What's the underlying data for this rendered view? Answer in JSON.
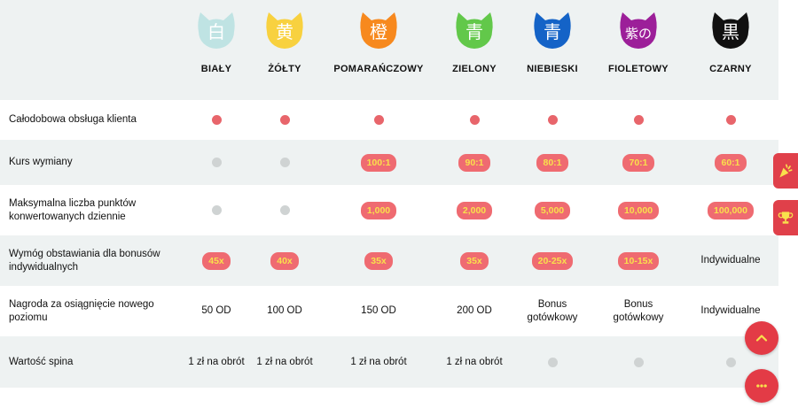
{
  "tiers": [
    {
      "name": "BIAŁY",
      "kanji": "白",
      "color": "#bfe3e3"
    },
    {
      "name": "ŻÓŁTY",
      "kanji": "黄",
      "color": "#f8d13f"
    },
    {
      "name": "POMARAŃCZOWY",
      "kanji": "橙",
      "color": "#f7891e"
    },
    {
      "name": "ZIELONY",
      "kanji": "青",
      "color": "#62c84a"
    },
    {
      "name": "NIEBIESKI",
      "kanji": "青",
      "color": "#1463c7"
    },
    {
      "name": "FIOLETOWY",
      "kanji": "紫の",
      "color": "#9c1f99"
    },
    {
      "name": "CZARNY",
      "kanji": "黒",
      "color": "#111111"
    }
  ],
  "rows": [
    {
      "label": "Całodobowa obsługa klienta",
      "cells": [
        {
          "t": "dot",
          "c": "red"
        },
        {
          "t": "dot",
          "c": "red"
        },
        {
          "t": "dot",
          "c": "red"
        },
        {
          "t": "dot",
          "c": "red"
        },
        {
          "t": "dot",
          "c": "red"
        },
        {
          "t": "dot",
          "c": "red"
        },
        {
          "t": "dot",
          "c": "red"
        }
      ]
    },
    {
      "label": "Kurs wymiany",
      "cells": [
        {
          "t": "dot",
          "c": "grey"
        },
        {
          "t": "dot",
          "c": "grey"
        },
        {
          "t": "pill",
          "v": "100:1"
        },
        {
          "t": "pill",
          "v": "90:1"
        },
        {
          "t": "pill",
          "v": "80:1"
        },
        {
          "t": "pill",
          "v": "70:1"
        },
        {
          "t": "pill",
          "v": "60:1"
        }
      ]
    },
    {
      "label": "Maksymalna liczba punktów konwertowanych dziennie",
      "cells": [
        {
          "t": "dot",
          "c": "grey"
        },
        {
          "t": "dot",
          "c": "grey"
        },
        {
          "t": "pill",
          "v": "1,000"
        },
        {
          "t": "pill",
          "v": "2,000"
        },
        {
          "t": "pill",
          "v": "5,000"
        },
        {
          "t": "pill",
          "v": "10,000"
        },
        {
          "t": "pill",
          "v": "100,000"
        }
      ]
    },
    {
      "label": "Wymóg obstawiania dla bonusów indywidualnych",
      "cells": [
        {
          "t": "pill",
          "v": "45x"
        },
        {
          "t": "pill",
          "v": "40x"
        },
        {
          "t": "pill",
          "v": "35x"
        },
        {
          "t": "pill",
          "v": "35x"
        },
        {
          "t": "pill",
          "v": "20-25x"
        },
        {
          "t": "pill",
          "v": "10-15x"
        },
        {
          "t": "text",
          "v": "Indywidualne"
        }
      ]
    },
    {
      "label": "Nagroda za osiągnięcie nowego poziomu",
      "cells": [
        {
          "t": "text",
          "v": "50 OD"
        },
        {
          "t": "text",
          "v": "100 OD"
        },
        {
          "t": "text",
          "v": "150 OD"
        },
        {
          "t": "text",
          "v": "200 OD"
        },
        {
          "t": "text",
          "v": "Bonus gotówkowy"
        },
        {
          "t": "text",
          "v": "Bonus gotówkowy"
        },
        {
          "t": "text",
          "v": "Indywidualne"
        }
      ]
    },
    {
      "label": "Wartość spina",
      "cells": [
        {
          "t": "text",
          "v": "1 zł na obrót"
        },
        {
          "t": "text",
          "v": "1 zł na obrót"
        },
        {
          "t": "text",
          "v": "1 zł na obrót"
        },
        {
          "t": "text",
          "v": "1 zł na obrót"
        },
        {
          "t": "dot",
          "c": "grey"
        },
        {
          "t": "dot",
          "c": "grey"
        },
        {
          "t": "dot",
          "c": "grey"
        }
      ]
    }
  ],
  "side_badges": [
    {
      "icon": "party-popper-icon"
    },
    {
      "icon": "trophy-icon"
    }
  ],
  "fabs": [
    {
      "icon": "chevron-up-icon"
    },
    {
      "icon": "chat-icon"
    }
  ]
}
